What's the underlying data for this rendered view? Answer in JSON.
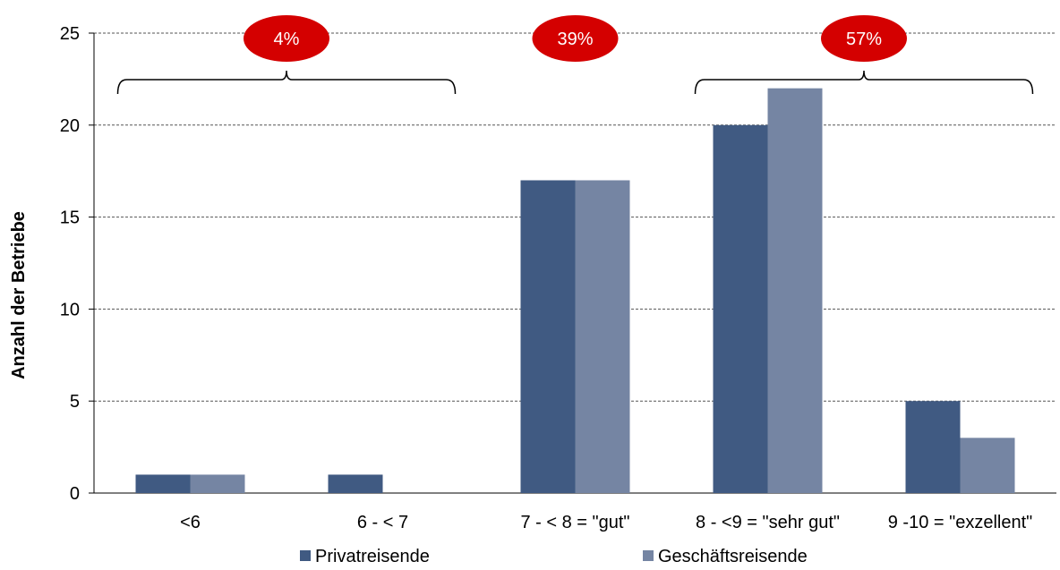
{
  "chart_data": {
    "type": "bar",
    "ylabel": "Anzahl der Betriebe",
    "ylim": [
      0,
      25
    ],
    "yticks": [
      0,
      5,
      10,
      15,
      20,
      25
    ],
    "grid": true,
    "legend_position": "bottom",
    "categories": [
      "<6",
      "6 - < 7",
      "7 - < 8 = \"gut\"",
      "8 - <9 = \"sehr gut\"",
      "9 -10 = \"exzellent\""
    ],
    "series": [
      {
        "name": "Privatreisende",
        "color": "#405a82",
        "values": [
          1,
          1,
          17,
          20,
          5
        ]
      },
      {
        "name": "Geschäftsreisende",
        "color": "#7585a3",
        "values": [
          1,
          0,
          17,
          22,
          3
        ]
      }
    ],
    "annotations": [
      {
        "label": "4%",
        "color": "#d40000",
        "categories": [
          0,
          1
        ],
        "bracket": true
      },
      {
        "label": "39%",
        "color": "#d40000",
        "categories": [
          2
        ],
        "bracket": false
      },
      {
        "label": "57%",
        "color": "#d40000",
        "categories": [
          3,
          4
        ],
        "bracket": true
      }
    ]
  }
}
